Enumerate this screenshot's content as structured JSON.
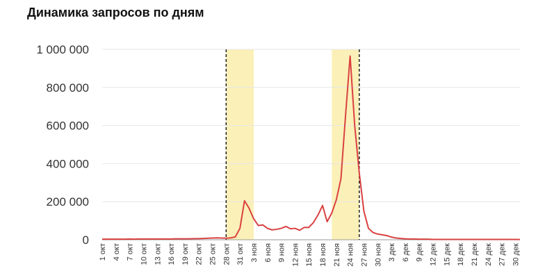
{
  "chart_data": {
    "type": "line",
    "title": "Динамика запросов по дням",
    "xlabel": "",
    "ylabel": "",
    "ylim": [
      0,
      1000000
    ],
    "grid": true,
    "legend": "none",
    "y_ticks": [
      0,
      200000,
      400000,
      600000,
      800000,
      1000000
    ],
    "y_tick_labels": [
      "0",
      "200 000",
      "400 000",
      "600 000",
      "800 000",
      "1 000 000"
    ],
    "x_tick_labels": [
      "1 окт",
      "4 окт",
      "7 окт",
      "10 окт",
      "13 окт",
      "16 окт",
      "19 окт",
      "22 окт",
      "25 окт",
      "28 окт",
      "31 окт",
      "3 ноя",
      "6 ноя",
      "9 ноя",
      "12 ноя",
      "15 ноя",
      "18 ноя",
      "21 ноя",
      "24 ноя",
      "27 ноя",
      "30 ноя",
      "3 дек",
      "6 дек",
      "9 дек",
      "12 дек",
      "15 дек",
      "18 дек",
      "21 дек",
      "24 дек",
      "27 дек",
      "30 дек"
    ],
    "x_tick_step_days": 3,
    "series": [
      {
        "color": "#d94141",
        "start_date": "1 окт",
        "values": [
          3000,
          3000,
          3000,
          3000,
          3000,
          3000,
          4000,
          3000,
          4000,
          4000,
          4000,
          4000,
          4000,
          4000,
          4000,
          4000,
          5000,
          5000,
          5000,
          5000,
          6000,
          6000,
          7000,
          8000,
          9000,
          10000,
          9000,
          8000,
          10000,
          15000,
          60000,
          205000,
          165000,
          110000,
          75000,
          78000,
          60000,
          52000,
          55000,
          60000,
          70000,
          58000,
          60000,
          50000,
          65000,
          65000,
          90000,
          130000,
          180000,
          95000,
          140000,
          210000,
          320000,
          650000,
          965000,
          600000,
          350000,
          150000,
          60000,
          38000,
          30000,
          26000,
          22000,
          14000,
          9000,
          7000,
          5000,
          4000,
          4000,
          3000,
          3000,
          3000,
          2000,
          2000,
          2000,
          2000,
          2000,
          2000,
          2000,
          2000,
          2000,
          2000,
          2000,
          2000,
          2000,
          2000,
          2000,
          2000,
          2000,
          2000,
          2000,
          1500
        ]
      }
    ],
    "highlights": [
      {
        "from": "28 окт",
        "to": "3 ноя",
        "color": "#fbf0b8"
      },
      {
        "from": "20 ноя",
        "to": "26 ноя",
        "color": "#fbf0b8"
      }
    ],
    "markers": [
      {
        "at": "28 окт",
        "style": "dashed",
        "color": "#111111"
      },
      {
        "at": "26 ноя",
        "style": "dashed",
        "color": "#111111"
      }
    ]
  }
}
